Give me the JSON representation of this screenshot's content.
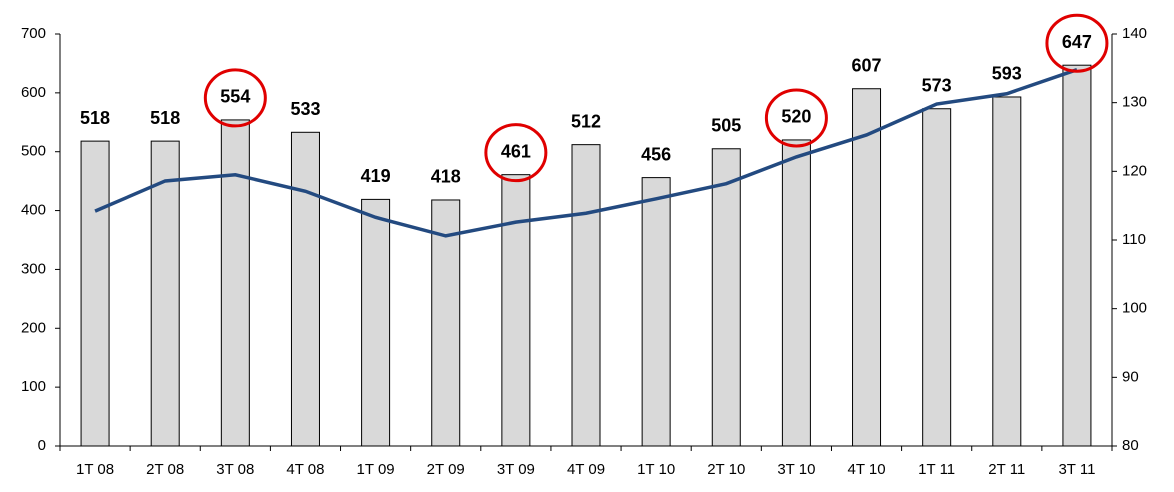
{
  "chart_data": {
    "type": "bar-line",
    "categories": [
      "1T 08",
      "2T 08",
      "3T 08",
      "4T 08",
      "1T 09",
      "2T 09",
      "3T 09",
      "4T 09",
      "1T 10",
      "2T 10",
      "3T 10",
      "4T 10",
      "1T 11",
      "2T 11",
      "3T 11"
    ],
    "series": [
      {
        "type": "bar",
        "color": "#d9d9d9",
        "values": [
          518,
          518,
          554,
          533,
          419,
          418,
          461,
          512,
          456,
          505,
          520,
          607,
          573,
          593,
          647
        ]
      },
      {
        "type": "line",
        "axis": "y2",
        "color": "#234a80",
        "values": [
          114.2,
          118.6,
          119.5,
          117.1,
          113.3,
          110.6,
          112.6,
          113.9,
          116.0,
          118.2,
          122.1,
          125.3,
          129.8,
          131.3,
          134.8
        ]
      }
    ],
    "ylim": [
      0,
      700
    ],
    "yticks": [
      0,
      100,
      200,
      300,
      400,
      500,
      600,
      700
    ],
    "y2lim": [
      80,
      140
    ],
    "y2ticks": [
      80,
      90,
      100,
      110,
      120,
      130,
      140
    ],
    "circled": [
      2,
      6,
      10,
      14
    ],
    "circle_color": "#e00000"
  }
}
